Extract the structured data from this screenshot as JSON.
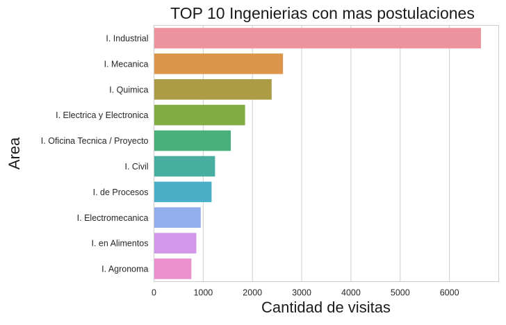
{
  "chart_data": {
    "type": "bar",
    "orientation": "horizontal",
    "title": "TOP 10 Ingenierias con mas postulaciones",
    "xlabel": "Cantidad de visitas",
    "ylabel": "Area",
    "xlim": [
      0,
      7000
    ],
    "xticks": [
      0,
      1000,
      2000,
      3000,
      4000,
      5000,
      6000
    ],
    "grid": true,
    "categories": [
      "I. Industrial",
      "I. Mecanica",
      "I. Quimica",
      "I. Electrica y Electronica",
      "I. Oficina Tecnica / Proyecto",
      "I. Civil",
      "I. de Procesos",
      "I. Electromecanica",
      "I. en Alimentos",
      "I. Agronoma"
    ],
    "values": [
      6640,
      2620,
      2390,
      1850,
      1560,
      1240,
      1170,
      950,
      860,
      760
    ],
    "colors": [
      "#ED939D",
      "#DC954A",
      "#AC9C45",
      "#81AD44",
      "#49B07B",
      "#48AE9F",
      "#4CAFC8",
      "#93AEEA",
      "#D297EA",
      "#EB8FCD"
    ]
  }
}
